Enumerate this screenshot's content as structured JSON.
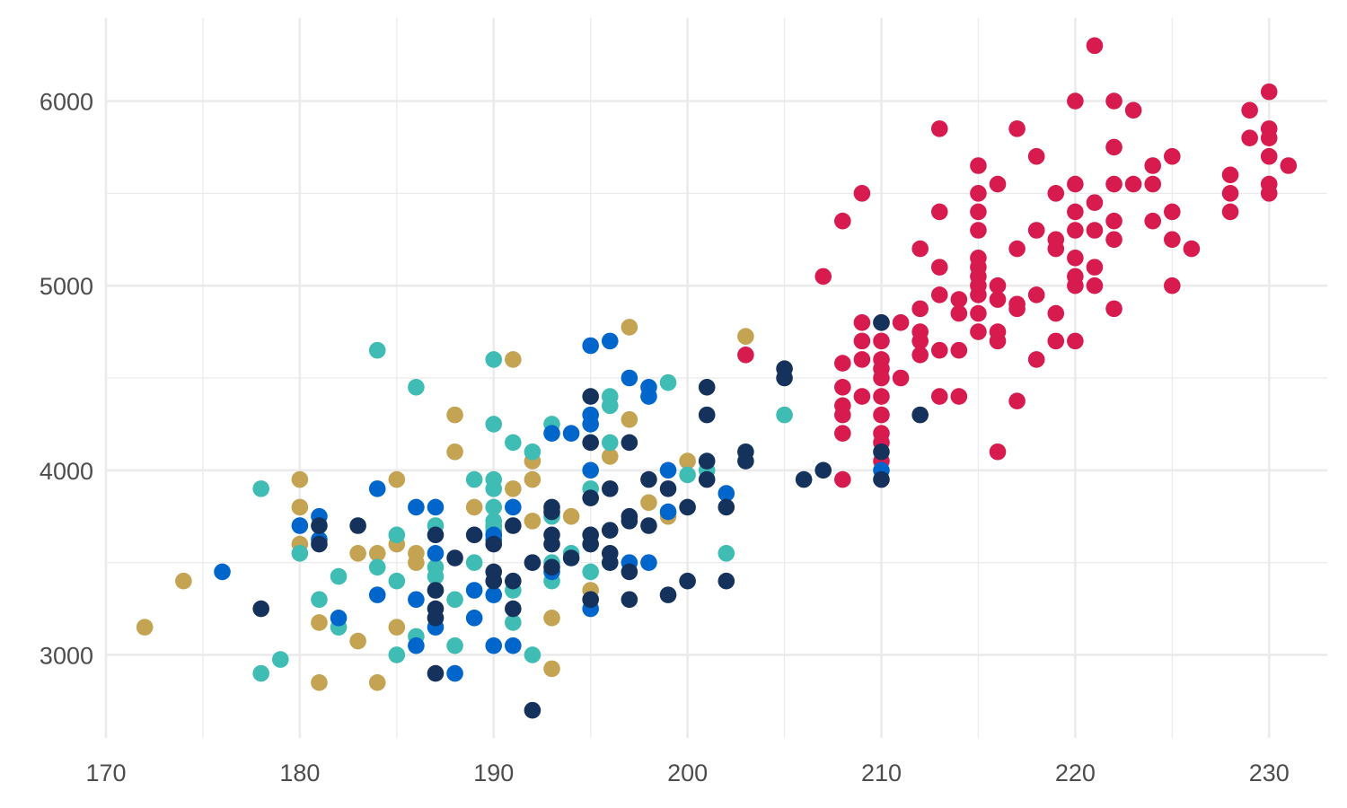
{
  "chart_data": {
    "type": "scatter",
    "title": "",
    "xlabel": "",
    "ylabel": "",
    "xlim": [
      170,
      233
    ],
    "ylim": [
      2550,
      6450
    ],
    "x_ticks": [
      "170",
      "180",
      "190",
      "200",
      "210",
      "220",
      "230"
    ],
    "y_ticks": [
      "3000",
      "4000",
      "5000",
      "6000"
    ],
    "grid": true,
    "legend": "none",
    "series": [
      {
        "color": "#D81B4E",
        "points": [
          [
            210,
            4800
          ],
          [
            210,
            4700
          ],
          [
            210,
            4600
          ],
          [
            210,
            4550
          ],
          [
            210,
            4500
          ],
          [
            210,
            4400
          ],
          [
            210,
            4300
          ],
          [
            210,
            4200
          ],
          [
            210,
            4150
          ],
          [
            210,
            4050
          ],
          [
            208,
            4580
          ],
          [
            208,
            4450
          ],
          [
            208,
            4350
          ],
          [
            208,
            4300
          ],
          [
            208,
            4200
          ],
          [
            208,
            3950
          ],
          [
            208,
            5350
          ],
          [
            209,
            4800
          ],
          [
            209,
            4700
          ],
          [
            209,
            4600
          ],
          [
            209,
            4400
          ],
          [
            209,
            5500
          ],
          [
            207,
            5050
          ],
          [
            211,
            4800
          ],
          [
            211,
            4500
          ],
          [
            212,
            5200
          ],
          [
            212,
            4875
          ],
          [
            212,
            4750
          ],
          [
            212,
            4700
          ],
          [
            212,
            4625
          ],
          [
            213,
            5850
          ],
          [
            213,
            5400
          ],
          [
            213,
            5100
          ],
          [
            213,
            4950
          ],
          [
            213,
            4650
          ],
          [
            213,
            4400
          ],
          [
            214,
            4925
          ],
          [
            214,
            4850
          ],
          [
            214,
            4650
          ],
          [
            214,
            4400
          ],
          [
            215,
            5650
          ],
          [
            215,
            5500
          ],
          [
            215,
            5400
          ],
          [
            215,
            5300
          ],
          [
            215,
            5150
          ],
          [
            215,
            5100
          ],
          [
            215,
            5050
          ],
          [
            215,
            5000
          ],
          [
            215,
            4950
          ],
          [
            215,
            4850
          ],
          [
            215,
            4750
          ],
          [
            216,
            5550
          ],
          [
            216,
            5000
          ],
          [
            216,
            4925
          ],
          [
            216,
            4750
          ],
          [
            216,
            4700
          ],
          [
            216,
            4100
          ],
          [
            217,
            5850
          ],
          [
            217,
            5200
          ],
          [
            217,
            4900
          ],
          [
            217,
            4875
          ],
          [
            217,
            4375
          ],
          [
            218,
            5700
          ],
          [
            218,
            5300
          ],
          [
            218,
            4950
          ],
          [
            218,
            4600
          ],
          [
            219,
            5500
          ],
          [
            219,
            5250
          ],
          [
            219,
            5200
          ],
          [
            219,
            4850
          ],
          [
            219,
            4700
          ],
          [
            220,
            6000
          ],
          [
            220,
            5550
          ],
          [
            220,
            5400
          ],
          [
            220,
            5300
          ],
          [
            220,
            5150
          ],
          [
            220,
            5050
          ],
          [
            220,
            5000
          ],
          [
            220,
            4700
          ],
          [
            221,
            6300
          ],
          [
            221,
            5450
          ],
          [
            221,
            5300
          ],
          [
            221,
            5100
          ],
          [
            221,
            5000
          ],
          [
            222,
            6000
          ],
          [
            222,
            5750
          ],
          [
            222,
            5550
          ],
          [
            222,
            5350
          ],
          [
            222,
            5250
          ],
          [
            222,
            4875
          ],
          [
            223,
            5950
          ],
          [
            223,
            5550
          ],
          [
            224,
            5650
          ],
          [
            224,
            5550
          ],
          [
            224,
            5350
          ],
          [
            225,
            5700
          ],
          [
            225,
            5400
          ],
          [
            225,
            5250
          ],
          [
            225,
            5000
          ],
          [
            226,
            5200
          ],
          [
            228,
            5600
          ],
          [
            228,
            5500
          ],
          [
            228,
            5400
          ],
          [
            229,
            5950
          ],
          [
            229,
            5800
          ],
          [
            230,
            6050
          ],
          [
            230,
            5850
          ],
          [
            230,
            5800
          ],
          [
            230,
            5700
          ],
          [
            230,
            5550
          ],
          [
            230,
            5500
          ],
          [
            231,
            5650
          ],
          [
            203,
            4625
          ]
        ]
      },
      {
        "color": "#C4A352",
        "points": [
          [
            172,
            3150
          ],
          [
            174,
            3400
          ],
          [
            180,
            3950
          ],
          [
            180,
            3800
          ],
          [
            180,
            3600
          ],
          [
            181,
            3175
          ],
          [
            181,
            2850
          ],
          [
            183,
            3550
          ],
          [
            183,
            3075
          ],
          [
            184,
            3550
          ],
          [
            184,
            2850
          ],
          [
            185,
            3950
          ],
          [
            185,
            3600
          ],
          [
            185,
            3150
          ],
          [
            186,
            3550
          ],
          [
            186,
            3500
          ],
          [
            187,
            3200
          ],
          [
            188,
            4300
          ],
          [
            188,
            4100
          ],
          [
            189,
            3800
          ],
          [
            190,
            3700
          ],
          [
            190,
            3650
          ],
          [
            191,
            4600
          ],
          [
            191,
            3900
          ],
          [
            192,
            4050
          ],
          [
            192,
            3950
          ],
          [
            192,
            3725
          ],
          [
            193,
            3200
          ],
          [
            193,
            2925
          ],
          [
            194,
            3750
          ],
          [
            195,
            3350
          ],
          [
            195,
            3300
          ],
          [
            196,
            4075
          ],
          [
            197,
            4775
          ],
          [
            197,
            4275
          ],
          [
            198,
            3825
          ],
          [
            199,
            3750
          ],
          [
            200,
            4050
          ],
          [
            203,
            4725
          ]
        ]
      },
      {
        "color": "#3FBDB4",
        "points": [
          [
            178,
            3900
          ],
          [
            178,
            2900
          ],
          [
            179,
            2975
          ],
          [
            180,
            3550
          ],
          [
            181,
            3300
          ],
          [
            182,
            3425
          ],
          [
            182,
            3150
          ],
          [
            184,
            4650
          ],
          [
            184,
            3475
          ],
          [
            185,
            3650
          ],
          [
            185,
            3400
          ],
          [
            185,
            3000
          ],
          [
            186,
            4450
          ],
          [
            186,
            3100
          ],
          [
            187,
            3700
          ],
          [
            187,
            3475
          ],
          [
            187,
            3425
          ],
          [
            187,
            3350
          ],
          [
            188,
            3300
          ],
          [
            188,
            3050
          ],
          [
            189,
            3950
          ],
          [
            189,
            3500
          ],
          [
            190,
            4600
          ],
          [
            190,
            4250
          ],
          [
            190,
            3950
          ],
          [
            190,
            3900
          ],
          [
            190,
            3800
          ],
          [
            190,
            3725
          ],
          [
            190,
            3700
          ],
          [
            190,
            3675
          ],
          [
            191,
            4150
          ],
          [
            191,
            3350
          ],
          [
            191,
            3175
          ],
          [
            192,
            4100
          ],
          [
            192,
            3000
          ],
          [
            193,
            4250
          ],
          [
            193,
            3750
          ],
          [
            193,
            3500
          ],
          [
            193,
            3400
          ],
          [
            194,
            3550
          ],
          [
            195,
            3900
          ],
          [
            195,
            3450
          ],
          [
            196,
            4400
          ],
          [
            196,
            4350
          ],
          [
            196,
            4150
          ],
          [
            199,
            4475
          ],
          [
            200,
            3975
          ],
          [
            201,
            4000
          ],
          [
            202,
            3550
          ],
          [
            205,
            4300
          ]
        ]
      },
      {
        "color": "#0066CC",
        "points": [
          [
            176,
            3450
          ],
          [
            180,
            3700
          ],
          [
            181,
            3750
          ],
          [
            181,
            3625
          ],
          [
            182,
            3200
          ],
          [
            184,
            3900
          ],
          [
            184,
            3325
          ],
          [
            186,
            3800
          ],
          [
            186,
            3300
          ],
          [
            186,
            3050
          ],
          [
            187,
            3800
          ],
          [
            187,
            3550
          ],
          [
            187,
            3150
          ],
          [
            188,
            2900
          ],
          [
            189,
            3350
          ],
          [
            189,
            3200
          ],
          [
            190,
            3650
          ],
          [
            190,
            3625
          ],
          [
            190,
            3325
          ],
          [
            190,
            3050
          ],
          [
            191,
            3800
          ],
          [
            191,
            3050
          ],
          [
            193,
            3450
          ],
          [
            193,
            4200
          ],
          [
            194,
            4200
          ],
          [
            195,
            4675
          ],
          [
            195,
            4300
          ],
          [
            195,
            4250
          ],
          [
            195,
            4000
          ],
          [
            195,
            3250
          ],
          [
            196,
            4700
          ],
          [
            197,
            4500
          ],
          [
            197,
            3500
          ],
          [
            198,
            4450
          ],
          [
            198,
            4400
          ],
          [
            198,
            3500
          ],
          [
            199,
            4000
          ],
          [
            199,
            3775
          ],
          [
            202,
            3875
          ],
          [
            210,
            4000
          ]
        ]
      },
      {
        "color": "#14325C",
        "points": [
          [
            178,
            3250
          ],
          [
            181,
            3700
          ],
          [
            181,
            3600
          ],
          [
            183,
            3700
          ],
          [
            187,
            3650
          ],
          [
            187,
            3350
          ],
          [
            187,
            3250
          ],
          [
            187,
            3200
          ],
          [
            187,
            2900
          ],
          [
            188,
            3525
          ],
          [
            189,
            3650
          ],
          [
            190,
            3600
          ],
          [
            190,
            3450
          ],
          [
            190,
            3400
          ],
          [
            191,
            3700
          ],
          [
            191,
            3400
          ],
          [
            191,
            3250
          ],
          [
            192,
            3500
          ],
          [
            192,
            2700
          ],
          [
            193,
            3800
          ],
          [
            193,
            3775
          ],
          [
            193,
            3650
          ],
          [
            193,
            3600
          ],
          [
            193,
            3475
          ],
          [
            194,
            3525
          ],
          [
            195,
            4400
          ],
          [
            195,
            4150
          ],
          [
            195,
            3850
          ],
          [
            195,
            3650
          ],
          [
            195,
            3600
          ],
          [
            195,
            3300
          ],
          [
            196,
            3900
          ],
          [
            196,
            3675
          ],
          [
            196,
            3550
          ],
          [
            196,
            3500
          ],
          [
            197,
            4150
          ],
          [
            197,
            3750
          ],
          [
            197,
            3725
          ],
          [
            197,
            3450
          ],
          [
            197,
            3300
          ],
          [
            198,
            3950
          ],
          [
            198,
            3700
          ],
          [
            199,
            3900
          ],
          [
            199,
            3325
          ],
          [
            200,
            3800
          ],
          [
            200,
            3400
          ],
          [
            201,
            4450
          ],
          [
            201,
            4300
          ],
          [
            201,
            4050
          ],
          [
            201,
            3950
          ],
          [
            202,
            3800
          ],
          [
            202,
            3400
          ],
          [
            203,
            4100
          ],
          [
            203,
            4050
          ],
          [
            205,
            4550
          ],
          [
            205,
            4500
          ],
          [
            206,
            3950
          ],
          [
            207,
            4000
          ],
          [
            210,
            4800
          ],
          [
            210,
            4100
          ],
          [
            210,
            3950
          ],
          [
            212,
            4300
          ]
        ]
      }
    ]
  }
}
